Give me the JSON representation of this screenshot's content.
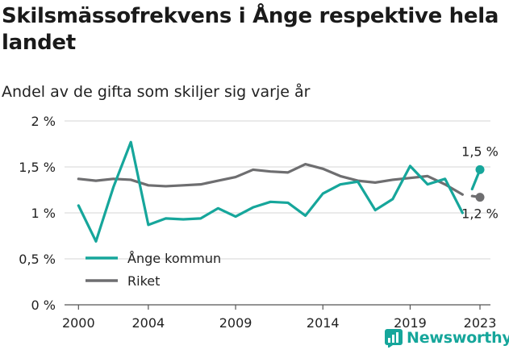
{
  "title": "Skilsmässofrekvens i Ånge respektive hela landet",
  "subtitle": "Andel av de gifta som skiljer sig varje år",
  "brand": "Newsworthy",
  "colors": {
    "ange": "#16a69b",
    "riket": "#6e6e70",
    "grid": "#d6d6d6",
    "text": "#222222"
  },
  "chart_data": {
    "type": "line",
    "title": "Skilsmässofrekvens i Ånge respektive hela landet",
    "subtitle": "Andel av de gifta som skiljer sig varje år",
    "xlabel": "",
    "ylabel": "",
    "x": [
      2000,
      2001,
      2002,
      2003,
      2004,
      2005,
      2006,
      2007,
      2008,
      2009,
      2010,
      2011,
      2012,
      2013,
      2014,
      2015,
      2016,
      2017,
      2018,
      2019,
      2020,
      2021,
      2022,
      2023
    ],
    "xlim": [
      1999.2,
      2023.6
    ],
    "xticks": [
      2000,
      2004,
      2009,
      2014,
      2019,
      2023
    ],
    "xtick_labels": [
      "2000",
      "2004",
      "2009",
      "2014",
      "2019",
      "2023"
    ],
    "ylim": [
      0,
      2
    ],
    "yticks": [
      0,
      0.5,
      1,
      1.5,
      2
    ],
    "ytick_labels": [
      "0 %",
      "0,5 %",
      "1 %",
      "1,5 %",
      "2 %"
    ],
    "grid": true,
    "legend_position": "bottom-left",
    "series": [
      {
        "name": "Ånge kommun",
        "color": "#16a69b",
        "values": [
          1.08,
          0.69,
          1.28,
          1.77,
          0.87,
          0.94,
          0.93,
          0.94,
          1.05,
          0.96,
          1.06,
          1.12,
          1.11,
          0.97,
          1.21,
          1.31,
          1.34,
          1.03,
          1.15,
          1.51,
          1.31,
          1.37,
          1.0,
          1.47
        ],
        "end_label": "1,5 %"
      },
      {
        "name": "Riket",
        "color": "#6e6e70",
        "values": [
          1.37,
          1.35,
          1.37,
          1.36,
          1.3,
          1.29,
          1.3,
          1.31,
          1.35,
          1.39,
          1.47,
          1.45,
          1.44,
          1.53,
          1.48,
          1.4,
          1.35,
          1.33,
          1.36,
          1.38,
          1.4,
          1.31,
          1.2,
          1.17
        ],
        "end_label": "1,2 %"
      }
    ]
  }
}
